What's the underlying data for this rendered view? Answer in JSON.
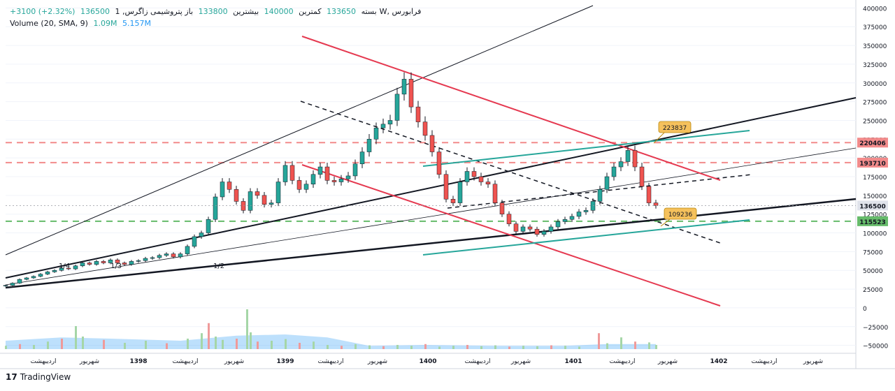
{
  "legend": {
    "symbol": "پتروشیمی زاگرس, 1W, فرابورس",
    "open_label": "باز",
    "open": "133800",
    "high_label": "بیشترین",
    "high": "140000",
    "low_label": "کمترین",
    "low": "133650",
    "close_label": "بسته",
    "close": "136500",
    "change": "+3100 (+2.32%)",
    "volume_label": "Volume (20, SMA, 9)",
    "volume_value": "1.09M",
    "volume_sma": "5.157M"
  },
  "brand": {
    "logo": "17",
    "name": "TradingView"
  },
  "colors": {
    "up": "#26a69a",
    "down": "#ef5350",
    "candle_body": "#131722",
    "red_line": "#e53950",
    "teal_line": "#26a69a",
    "pink_dash": "#f28b8b",
    "green_dash": "#66bb6a",
    "volume_area": "#42a5f5",
    "badge": "#f5c15c"
  },
  "chart_data": {
    "type": "candlestick",
    "y_axis": {
      "ticks": [
        400000,
        375000,
        350000,
        325000,
        300000,
        275000,
        250000,
        225000,
        200000,
        175000,
        150000,
        125000,
        100000,
        75000,
        50000,
        25000,
        0,
        -25000,
        -50000
      ],
      "tick_labels": [
        "400000",
        "375000",
        "350000",
        "325000",
        "300000",
        "275000",
        "250000",
        "225000",
        "200000",
        "175000",
        "150000",
        "125000",
        "100000",
        "75000",
        "50000",
        "25000",
        "0",
        "−25000",
        "−50000"
      ],
      "range": [
        -55000,
        405000
      ]
    },
    "x_axis": {
      "labels": [
        "اردیبهشت",
        "شهریور",
        "1398",
        "اردیبهشت",
        "شهریور",
        "1399",
        "اردیبهشت",
        "شهریور",
        "1400",
        "اردیبهشت",
        "شهریور",
        "1401",
        "اردیبهشت",
        "شهریور",
        "1402",
        "اردیبهشت",
        "شهریور"
      ]
    },
    "price_labels": [
      {
        "value": 220406,
        "text": "220406",
        "color": "#f28b8b"
      },
      {
        "value": 193710,
        "text": "193710",
        "color": "#f28b8b"
      },
      {
        "value": 136500,
        "text": "136500",
        "color": "#e0e3eb"
      },
      {
        "value": 115523,
        "text": "115523",
        "color": "#66bb6a"
      }
    ],
    "annotations": [
      {
        "text": "223837"
      },
      {
        "text": "109236"
      },
      {
        "text": "1/4"
      },
      {
        "text": "1/3"
      },
      {
        "text": "1/2"
      }
    ],
    "horizontal_levels": [
      {
        "value": 220406,
        "style": "dash",
        "color": "#f28b8b"
      },
      {
        "value": 193710,
        "style": "dash",
        "color": "#f28b8b"
      },
      {
        "value": 115523,
        "style": "dash",
        "color": "#66bb6a"
      }
    ],
    "price_series": [
      [
        0,
        30000
      ],
      [
        10,
        33000
      ],
      [
        20,
        38000
      ],
      [
        30,
        40000
      ],
      [
        40,
        42000
      ],
      [
        50,
        45000
      ],
      [
        60,
        48000
      ],
      [
        70,
        50000
      ],
      [
        80,
        53000
      ],
      [
        90,
        52000
      ],
      [
        100,
        56000
      ],
      [
        110,
        60000
      ],
      [
        120,
        58000
      ],
      [
        130,
        62000
      ],
      [
        140,
        60000
      ],
      [
        150,
        64000
      ],
      [
        160,
        60000
      ],
      [
        170,
        58000
      ],
      [
        180,
        62000
      ],
      [
        190,
        63000
      ],
      [
        200,
        66000
      ],
      [
        210,
        67000
      ],
      [
        220,
        70000
      ],
      [
        230,
        72000
      ],
      [
        240,
        68000
      ],
      [
        250,
        72000
      ],
      [
        260,
        82000
      ],
      [
        270,
        95000
      ],
      [
        280,
        100000
      ],
      [
        290,
        118000
      ],
      [
        300,
        148000
      ],
      [
        310,
        168000
      ],
      [
        320,
        158000
      ],
      [
        330,
        142000
      ],
      [
        340,
        130000
      ],
      [
        350,
        155000
      ],
      [
        360,
        150000
      ],
      [
        370,
        138000
      ],
      [
        380,
        140000
      ],
      [
        390,
        168000
      ],
      [
        400,
        190000
      ],
      [
        410,
        170000
      ],
      [
        420,
        158000
      ],
      [
        430,
        165000
      ],
      [
        440,
        178000
      ],
      [
        450,
        188000
      ],
      [
        460,
        170000
      ],
      [
        470,
        168000
      ],
      [
        480,
        172000
      ],
      [
        490,
        176000
      ],
      [
        500,
        192000
      ],
      [
        510,
        208000
      ],
      [
        520,
        225000
      ],
      [
        530,
        240000
      ],
      [
        540,
        245000
      ],
      [
        550,
        250000
      ],
      [
        560,
        285000
      ],
      [
        570,
        305000
      ],
      [
        580,
        268000
      ],
      [
        590,
        248000
      ],
      [
        600,
        230000
      ],
      [
        610,
        208000
      ],
      [
        620,
        178000
      ],
      [
        630,
        145000
      ],
      [
        640,
        140000
      ],
      [
        650,
        168000
      ],
      [
        660,
        182000
      ],
      [
        670,
        175000
      ],
      [
        680,
        168000
      ],
      [
        690,
        165000
      ],
      [
        700,
        140000
      ],
      [
        710,
        125000
      ],
      [
        720,
        112000
      ],
      [
        730,
        102000
      ],
      [
        740,
        108000
      ],
      [
        750,
        105000
      ],
      [
        760,
        98000
      ],
      [
        770,
        102000
      ],
      [
        780,
        108000
      ],
      [
        790,
        115000
      ],
      [
        800,
        118000
      ],
      [
        810,
        122000
      ],
      [
        820,
        128000
      ],
      [
        830,
        130000
      ],
      [
        840,
        142000
      ],
      [
        850,
        158000
      ],
      [
        860,
        175000
      ],
      [
        870,
        188000
      ],
      [
        880,
        195000
      ],
      [
        890,
        210000
      ],
      [
        900,
        188000
      ],
      [
        910,
        162000
      ],
      [
        920,
        140000
      ],
      [
        930,
        136500
      ]
    ],
    "volume_series": [
      [
        0,
        8
      ],
      [
        20,
        12
      ],
      [
        40,
        10
      ],
      [
        60,
        18
      ],
      [
        80,
        25
      ],
      [
        100,
        55
      ],
      [
        110,
        30
      ],
      [
        140,
        22
      ],
      [
        170,
        15
      ],
      [
        200,
        20
      ],
      [
        230,
        14
      ],
      [
        260,
        25
      ],
      [
        280,
        38
      ],
      [
        290,
        62
      ],
      [
        300,
        30
      ],
      [
        310,
        22
      ],
      [
        330,
        25
      ],
      [
        345,
        95
      ],
      [
        350,
        40
      ],
      [
        360,
        18
      ],
      [
        380,
        20
      ],
      [
        400,
        24
      ],
      [
        420,
        15
      ],
      [
        440,
        18
      ],
      [
        460,
        10
      ],
      [
        480,
        8
      ],
      [
        500,
        12
      ],
      [
        520,
        9
      ],
      [
        540,
        7
      ],
      [
        560,
        10
      ],
      [
        580,
        8
      ],
      [
        600,
        12
      ],
      [
        620,
        6
      ],
      [
        640,
        8
      ],
      [
        660,
        10
      ],
      [
        680,
        7
      ],
      [
        700,
        9
      ],
      [
        720,
        6
      ],
      [
        740,
        8
      ],
      [
        760,
        7
      ],
      [
        780,
        9
      ],
      [
        800,
        8
      ],
      [
        820,
        6
      ],
      [
        848,
        38
      ],
      [
        860,
        14
      ],
      [
        880,
        28
      ],
      [
        900,
        18
      ],
      [
        920,
        16
      ],
      [
        930,
        10
      ]
    ],
    "volume_range": [
      0,
      100
    ]
  }
}
